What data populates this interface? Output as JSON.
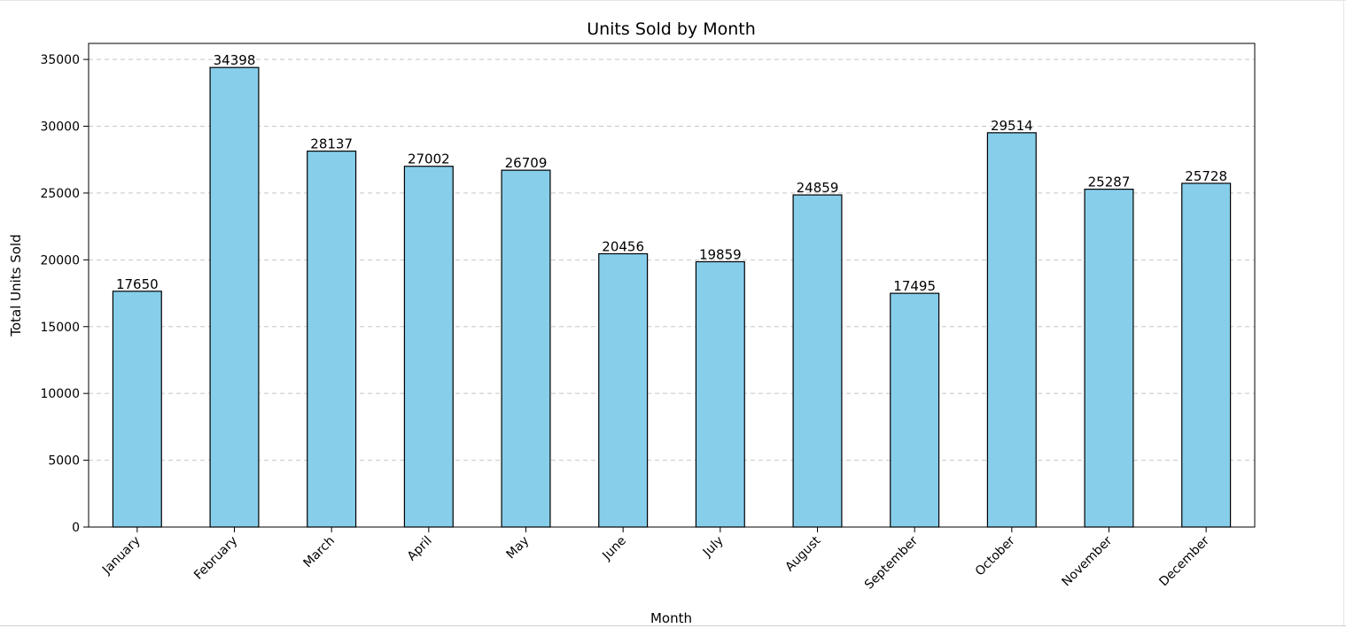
{
  "chart_data": {
    "type": "bar",
    "title": "Units Sold by Month",
    "xlabel": "Month",
    "ylabel": "Total Units Sold",
    "categories": [
      "January",
      "February",
      "March",
      "April",
      "May",
      "June",
      "July",
      "August",
      "September",
      "October",
      "November",
      "December"
    ],
    "values": [
      17650,
      34398,
      28137,
      27002,
      26709,
      20456,
      19859,
      24859,
      17495,
      29514,
      25287,
      25728
    ],
    "ylim": [
      0,
      36200
    ],
    "yticks": [
      0,
      5000,
      10000,
      15000,
      20000,
      25000,
      30000,
      35000
    ],
    "grid": "y-dashed",
    "legend": "none",
    "bar_color": "#87ceeb",
    "bar_edge_color": "#000000"
  }
}
